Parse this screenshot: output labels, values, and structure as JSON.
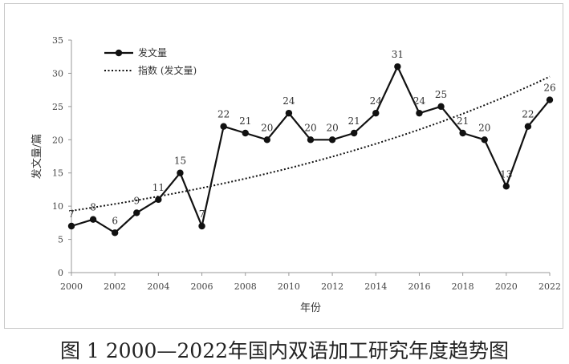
{
  "caption": "图 1 2000—2022年国内双语加工研究年度趋势图",
  "chart_data": {
    "type": "line",
    "xlabel": "年份",
    "ylabel": "发文量/篇",
    "ylim": [
      0,
      35
    ],
    "yticks": [
      0,
      5,
      10,
      15,
      20,
      25,
      30,
      35
    ],
    "xticks": [
      2000,
      2002,
      2004,
      2006,
      2008,
      2010,
      2012,
      2014,
      2016,
      2018,
      2020,
      2022
    ],
    "xlim": [
      2000,
      2022
    ],
    "grid": false,
    "legend_position": "top-left",
    "series": [
      {
        "name": "发文量",
        "style": "solid-marker",
        "color": "#000000",
        "x": [
          2000,
          2001,
          2002,
          2003,
          2004,
          2005,
          2006,
          2007,
          2008,
          2009,
          2010,
          2011,
          2012,
          2013,
          2014,
          2015,
          2016,
          2017,
          2018,
          2019,
          2020,
          2021,
          2022
        ],
        "values": [
          7,
          8,
          6,
          9,
          11,
          15,
          7,
          22,
          21,
          20,
          24,
          20,
          20,
          21,
          24,
          31,
          24,
          25,
          21,
          20,
          13,
          22,
          26
        ]
      },
      {
        "name": "指数 (发文量)",
        "style": "dotted",
        "color": "#000000",
        "x": [
          2000,
          2022
        ],
        "trend": "exponential",
        "values": [
          9.3,
          29.5
        ]
      }
    ]
  }
}
